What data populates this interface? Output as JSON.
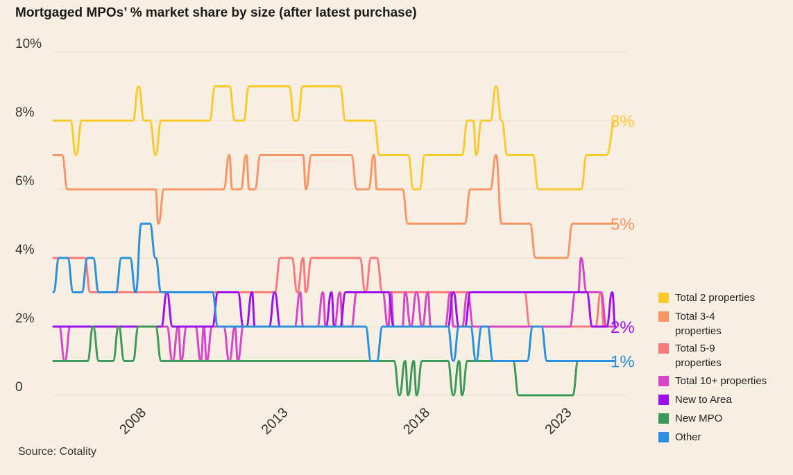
{
  "chart_data": {
    "type": "line",
    "title": "Mortgaged MPOs’ % market share by size (after latest purchase)",
    "source": "Source: Cotality",
    "ylim": [
      0,
      10
    ],
    "yticks": [
      {
        "value": 0,
        "label": "0"
      },
      {
        "value": 2,
        "label": "2%"
      },
      {
        "value": 4,
        "label": "4%"
      },
      {
        "value": 6,
        "label": "6%"
      },
      {
        "value": 8,
        "label": "8%"
      },
      {
        "value": 10,
        "label": "10%"
      }
    ],
    "xlim": [
      2005,
      2025.25
    ],
    "xticks": [
      {
        "value": 2008,
        "label": "2008"
      },
      {
        "value": 2013,
        "label": "2013"
      },
      {
        "value": 2018,
        "label": "2018"
      },
      {
        "value": 2023,
        "label": "2023"
      }
    ],
    "grid": true,
    "legend_position": "right",
    "series": [
      {
        "name": "Total 2 properties",
        "color": "#fcc92c",
        "end_label": "8%",
        "points": [
          [
            2005,
            8
          ],
          [
            2005.6,
            8
          ],
          [
            2005.8,
            7
          ],
          [
            2006,
            8
          ],
          [
            2007.8,
            8
          ],
          [
            2008,
            9
          ],
          [
            2008.2,
            8
          ],
          [
            2008.4,
            8
          ],
          [
            2008.6,
            7
          ],
          [
            2008.8,
            8
          ],
          [
            2010.5,
            8
          ],
          [
            2010.7,
            9
          ],
          [
            2011.2,
            9
          ],
          [
            2011.4,
            8
          ],
          [
            2011.7,
            8
          ],
          [
            2011.9,
            9
          ],
          [
            2013.3,
            9
          ],
          [
            2013.5,
            8
          ],
          [
            2013.6,
            8
          ],
          [
            2013.8,
            9
          ],
          [
            2015.1,
            9
          ],
          [
            2015.3,
            8
          ],
          [
            2016.3,
            8
          ],
          [
            2016.5,
            7
          ],
          [
            2017.5,
            7
          ],
          [
            2017.7,
            6
          ],
          [
            2017.9,
            6
          ],
          [
            2018.1,
            7
          ],
          [
            2019.4,
            7
          ],
          [
            2019.6,
            8
          ],
          [
            2019.8,
            8
          ],
          [
            2019.9,
            7
          ],
          [
            2020.1,
            8
          ],
          [
            2020.4,
            8
          ],
          [
            2020.6,
            9
          ],
          [
            2020.8,
            8
          ],
          [
            2021,
            7
          ],
          [
            2021.9,
            7
          ],
          [
            2022.1,
            6
          ],
          [
            2023.6,
            6
          ],
          [
            2023.8,
            7
          ],
          [
            2024.5,
            7
          ],
          [
            2024.8,
            8
          ]
        ]
      },
      {
        "name": "Total 3-4 properties",
        "color": "#f99467",
        "end_label": "5%",
        "points": [
          [
            2005,
            7
          ],
          [
            2005.3,
            7
          ],
          [
            2005.5,
            6
          ],
          [
            2008.6,
            6
          ],
          [
            2008.7,
            5
          ],
          [
            2008.9,
            6
          ],
          [
            2011,
            6
          ],
          [
            2011.2,
            7
          ],
          [
            2011.3,
            6
          ],
          [
            2011.6,
            6
          ],
          [
            2011.8,
            7
          ],
          [
            2011.9,
            6
          ],
          [
            2012.1,
            6
          ],
          [
            2012.3,
            7
          ],
          [
            2013.8,
            7
          ],
          [
            2013.9,
            6
          ],
          [
            2014.1,
            7
          ],
          [
            2015.5,
            7
          ],
          [
            2015.7,
            6
          ],
          [
            2016.1,
            6
          ],
          [
            2016.3,
            7
          ],
          [
            2016.4,
            6
          ],
          [
            2017.3,
            6
          ],
          [
            2017.5,
            5
          ],
          [
            2019.5,
            5
          ],
          [
            2019.7,
            6
          ],
          [
            2020.4,
            6
          ],
          [
            2020.6,
            7
          ],
          [
            2020.8,
            5
          ],
          [
            2021.8,
            5
          ],
          [
            2022,
            4
          ],
          [
            2023.1,
            4
          ],
          [
            2023.3,
            5
          ],
          [
            2024.8,
            5
          ]
        ]
      },
      {
        "name": "Total 5-9 properties",
        "color": "#f97a7d",
        "points": [
          [
            2005,
            4
          ],
          [
            2006.1,
            4
          ],
          [
            2006.3,
            3
          ],
          [
            2012.8,
            3
          ],
          [
            2013,
            4
          ],
          [
            2013.4,
            4
          ],
          [
            2013.6,
            3
          ],
          [
            2013.8,
            4
          ],
          [
            2013.9,
            3
          ],
          [
            2014.1,
            4
          ],
          [
            2015.8,
            4
          ],
          [
            2016,
            3
          ],
          [
            2016.2,
            4
          ],
          [
            2016.4,
            4
          ],
          [
            2016.6,
            3
          ],
          [
            2021.6,
            3
          ],
          [
            2021.8,
            2
          ],
          [
            2024.1,
            2
          ],
          [
            2024.3,
            3
          ],
          [
            2024.4,
            2
          ],
          [
            2024.8,
            2
          ]
        ]
      },
      {
        "name": "Total 10+ properties",
        "color": "#d945c9",
        "points": [
          [
            2005,
            2
          ],
          [
            2005.2,
            2
          ],
          [
            2005.4,
            1
          ],
          [
            2005.6,
            2
          ],
          [
            2009,
            2
          ],
          [
            2009.2,
            1
          ],
          [
            2009.4,
            2
          ],
          [
            2009.5,
            1
          ],
          [
            2009.7,
            2
          ],
          [
            2010,
            2
          ],
          [
            2010.2,
            1
          ],
          [
            2010.3,
            2
          ],
          [
            2010.4,
            1
          ],
          [
            2010.6,
            2
          ],
          [
            2011,
            2
          ],
          [
            2011.2,
            1
          ],
          [
            2011.4,
            2
          ],
          [
            2011.5,
            1
          ],
          [
            2011.7,
            2
          ],
          [
            2013.5,
            2
          ],
          [
            2013.7,
            3
          ],
          [
            2013.8,
            2
          ],
          [
            2014.3,
            2
          ],
          [
            2014.5,
            3
          ],
          [
            2014.6,
            2
          ],
          [
            2014.9,
            2
          ],
          [
            2015.1,
            3
          ],
          [
            2015.2,
            2
          ],
          [
            2015.5,
            2
          ],
          [
            2015.7,
            3
          ],
          [
            2016.6,
            3
          ],
          [
            2016.8,
            2
          ],
          [
            2016.9,
            3
          ],
          [
            2017,
            2
          ],
          [
            2017.3,
            2
          ],
          [
            2017.4,
            3
          ],
          [
            2017.6,
            2
          ],
          [
            2017.8,
            3
          ],
          [
            2018,
            2
          ],
          [
            2018.2,
            3
          ],
          [
            2018.3,
            2
          ],
          [
            2018.8,
            2
          ],
          [
            2019,
            3
          ],
          [
            2019.1,
            2
          ],
          [
            2019.4,
            2
          ],
          [
            2019.6,
            3
          ],
          [
            2019.8,
            2
          ],
          [
            2023.2,
            2
          ],
          [
            2023.4,
            3
          ],
          [
            2023.5,
            3
          ],
          [
            2023.6,
            4
          ],
          [
            2023.8,
            3
          ],
          [
            2024.3,
            3
          ],
          [
            2024.5,
            2
          ],
          [
            2024.8,
            2
          ]
        ]
      },
      {
        "name": "New to Area",
        "color": "#9d0fee",
        "end_label": "2%",
        "points": [
          [
            2005,
            2
          ],
          [
            2008.8,
            2
          ],
          [
            2009,
            3
          ],
          [
            2009.2,
            2
          ],
          [
            2010.6,
            2
          ],
          [
            2010.8,
            3
          ],
          [
            2011.5,
            3
          ],
          [
            2011.7,
            2
          ],
          [
            2011.8,
            2
          ],
          [
            2012,
            3
          ],
          [
            2012.1,
            2
          ],
          [
            2012.6,
            2
          ],
          [
            2012.8,
            3
          ],
          [
            2013,
            2
          ],
          [
            2014.6,
            2
          ],
          [
            2014.8,
            3
          ],
          [
            2014.9,
            2
          ],
          [
            2015.1,
            2
          ],
          [
            2015.3,
            3
          ],
          [
            2016.8,
            3
          ],
          [
            2017,
            2
          ],
          [
            2018.9,
            2
          ],
          [
            2019.1,
            3
          ],
          [
            2019.3,
            2
          ],
          [
            2019.5,
            2
          ],
          [
            2019.7,
            3
          ],
          [
            2023.8,
            3
          ],
          [
            2024,
            2
          ],
          [
            2024.5,
            2
          ],
          [
            2024.7,
            3
          ],
          [
            2024.8,
            2
          ]
        ]
      },
      {
        "name": "New MPO",
        "color": "#3a9a5a",
        "points": [
          [
            2005,
            1
          ],
          [
            2006.2,
            1
          ],
          [
            2006.4,
            2
          ],
          [
            2006.6,
            1
          ],
          [
            2007.1,
            1
          ],
          [
            2007.3,
            2
          ],
          [
            2007.5,
            1
          ],
          [
            2007.8,
            1
          ],
          [
            2008,
            2
          ],
          [
            2008.4,
            2
          ],
          [
            2008.6,
            2
          ],
          [
            2008.8,
            1
          ],
          [
            2017,
            1
          ],
          [
            2017.2,
            0
          ],
          [
            2017.4,
            1
          ],
          [
            2017.5,
            0
          ],
          [
            2017.7,
            1
          ],
          [
            2017.8,
            0
          ],
          [
            2018,
            1
          ],
          [
            2018.9,
            1
          ],
          [
            2019.1,
            0
          ],
          [
            2019.3,
            1
          ],
          [
            2019.4,
            0
          ],
          [
            2019.6,
            1
          ],
          [
            2021.2,
            1
          ],
          [
            2021.4,
            0
          ],
          [
            2023.3,
            0
          ],
          [
            2023.5,
            1
          ],
          [
            2024.8,
            1
          ]
        ]
      },
      {
        "name": "Other",
        "color": "#2a8fdf",
        "end_label": "1%",
        "points": [
          [
            2005,
            3
          ],
          [
            2005.2,
            4
          ],
          [
            2005.5,
            4
          ],
          [
            2005.7,
            3
          ],
          [
            2006,
            3
          ],
          [
            2006.2,
            4
          ],
          [
            2006.4,
            4
          ],
          [
            2006.6,
            3
          ],
          [
            2007.2,
            3
          ],
          [
            2007.4,
            4
          ],
          [
            2007.7,
            4
          ],
          [
            2007.9,
            3
          ],
          [
            2008.1,
            5
          ],
          [
            2008.4,
            5
          ],
          [
            2008.6,
            4
          ],
          [
            2008.8,
            3
          ],
          [
            2010.6,
            3
          ],
          [
            2010.8,
            2
          ],
          [
            2016,
            2
          ],
          [
            2016.2,
            1
          ],
          [
            2016.4,
            1
          ],
          [
            2016.6,
            2
          ],
          [
            2018.9,
            2
          ],
          [
            2019.1,
            1
          ],
          [
            2019.3,
            2
          ],
          [
            2019.7,
            2
          ],
          [
            2019.9,
            1
          ],
          [
            2020.1,
            2
          ],
          [
            2020.3,
            2
          ],
          [
            2020.5,
            1
          ],
          [
            2021.7,
            1
          ],
          [
            2021.9,
            2
          ],
          [
            2022.2,
            2
          ],
          [
            2022.4,
            1
          ],
          [
            2024.8,
            1
          ]
        ]
      }
    ],
    "legend": [
      {
        "lines": [
          "Total 2 properties"
        ],
        "color": "#fcc92c"
      },
      {
        "lines": [
          "Total 3-4",
          "properties"
        ],
        "color": "#f99467"
      },
      {
        "lines": [
          "Total 5-9",
          "properties"
        ],
        "color": "#f97a7d"
      },
      {
        "lines": [
          "Total 10+ properties"
        ],
        "color": "#d945c9"
      },
      {
        "lines": [
          "New to Area"
        ],
        "color": "#9d0fee"
      },
      {
        "lines": [
          "New MPO"
        ],
        "color": "#3a9a5a"
      },
      {
        "lines": [
          "Other"
        ],
        "color": "#2a8fdf"
      }
    ]
  }
}
